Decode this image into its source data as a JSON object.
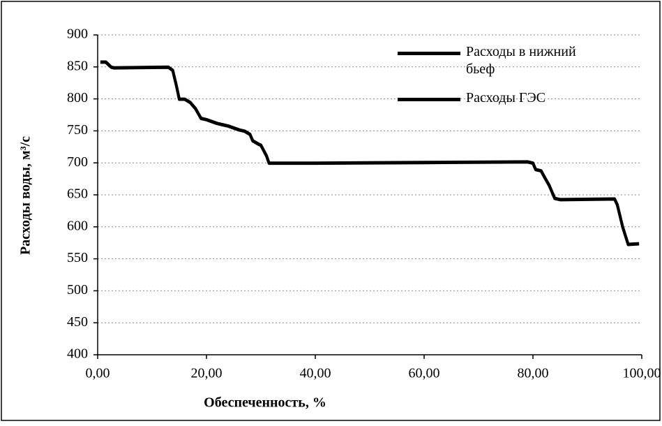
{
  "chart_data": {
    "type": "line",
    "ylabel": "Расходы воды, м³/с",
    "xlabel": "Обеспеченность, %",
    "x": [
      0.5,
      1.5,
      2.5,
      3,
      13,
      13.8,
      14.5,
      15,
      16,
      17,
      18,
      19,
      20,
      21,
      22,
      23,
      24,
      25,
      26,
      27,
      28,
      28.5,
      29.5,
      30,
      31,
      31.5,
      40,
      60,
      79,
      80,
      80.5,
      81.5,
      82,
      83,
      83.5,
      84,
      85,
      95,
      95.5,
      96.5,
      97.5,
      99.5
    ],
    "series": [
      {
        "name": "Расходы в нижний бьеф",
        "color": "#000000",
        "values": [
          858,
          858,
          850,
          849,
          850,
          845,
          820,
          800,
          800,
          795,
          785,
          770,
          768,
          765,
          762,
          760,
          758,
          755,
          752,
          750,
          745,
          735,
          730,
          728,
          712,
          700,
          700,
          701,
          702,
          700,
          690,
          688,
          680,
          665,
          655,
          645,
          643,
          644,
          635,
          600,
          573,
          574
        ]
      },
      {
        "name": "Расходы ГЭС",
        "color": "#000000",
        "values": [
          857,
          857,
          849,
          848,
          849,
          844,
          819,
          799,
          799,
          794,
          784,
          769,
          767,
          764,
          761,
          759,
          757,
          754,
          751,
          749,
          744,
          734,
          729,
          727,
          711,
          699,
          699,
          700,
          701,
          699,
          689,
          687,
          679,
          664,
          654,
          644,
          642,
          643,
          634,
          599,
          572,
          573
        ]
      }
    ],
    "xlim": [
      0,
      100
    ],
    "xticks": [
      {
        "value": 0,
        "label": "0,00"
      },
      {
        "value": 20,
        "label": "20,00"
      },
      {
        "value": 40,
        "label": "40,00"
      },
      {
        "value": 60,
        "label": "60,00"
      },
      {
        "value": 80,
        "label": "80,00"
      },
      {
        "value": 100,
        "label": "100,00"
      }
    ],
    "ylim": [
      400,
      900
    ],
    "yticks": [
      400,
      450,
      500,
      550,
      600,
      650,
      700,
      750,
      800,
      850,
      900
    ],
    "grid": true
  }
}
